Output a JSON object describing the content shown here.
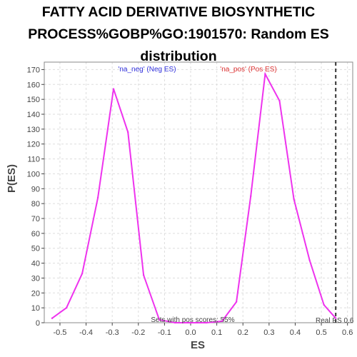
{
  "title_lines": [
    "FATTY ACID DERIVATIVE BIOSYNTHETIC",
    "PROCESS%GOBP%GO:1901570: Random ES",
    "distribution"
  ],
  "colors": {
    "line": "#ee33ee",
    "neg": "#3333dd",
    "pos": "#dd3333",
    "grid": "#dddddd",
    "axis": "#444444"
  },
  "chart_data": {
    "type": "line",
    "title": "FATTY ACID DERIVATIVE BIOSYNTHETIC PROCESS%GOBP%GO:1901570: Random ES distribution",
    "xlabel": "ES",
    "ylabel": "P(ES)",
    "xlim": [
      -0.56,
      0.62
    ],
    "ylim": [
      0,
      175
    ],
    "x_ticks": [
      "-0.5",
      "-0.4",
      "-0.3",
      "-0.2",
      "-0.1",
      "0.0",
      "0.1",
      "0.2",
      "0.3",
      "0.4",
      "0.5",
      "0.6"
    ],
    "y_ticks": [
      "0",
      "10",
      "20",
      "30",
      "40",
      "50",
      "60",
      "70",
      "80",
      "90",
      "100",
      "110",
      "120",
      "130",
      "140",
      "150",
      "160",
      "170"
    ],
    "grid": true,
    "series": [
      {
        "x": [
          -0.53,
          -0.475,
          -0.415,
          -0.355,
          -0.295,
          -0.24,
          -0.18,
          -0.12,
          -0.06,
          0.0,
          0.06,
          0.12,
          0.175,
          0.23,
          0.285,
          0.34,
          0.395,
          0.455,
          0.51,
          0.555
        ],
        "values": [
          3,
          10,
          33,
          84,
          157,
          128,
          32,
          2,
          0,
          0,
          0,
          1,
          14,
          85,
          167,
          149,
          83,
          42,
          12,
          3
        ]
      }
    ],
    "real_es": 0.555,
    "annotations": {
      "neg": "'na_neg' (Neg ES)",
      "pos": "'na_pos' (Pos ES)",
      "pos_scores": "Sets with pos scores: 55%",
      "real_es": "Real ES 0.6"
    }
  }
}
